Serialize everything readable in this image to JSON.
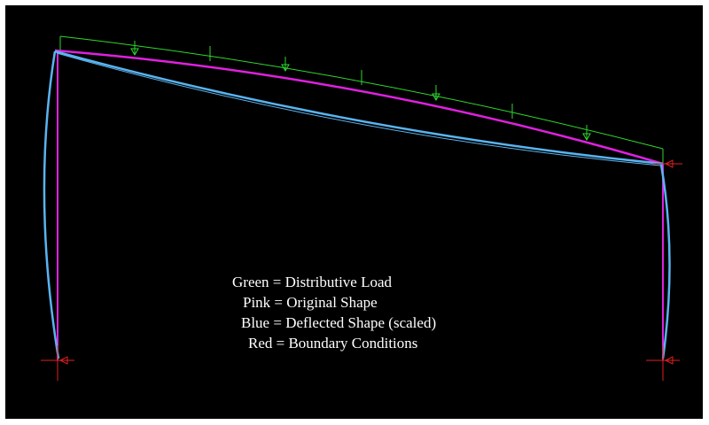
{
  "legend": {
    "lines": [
      "Green = Distributive Load",
      "Pink = Original Shape",
      "Blue = Deflected Shape (scaled)",
      "Red = Boundary Conditions"
    ]
  }
}
